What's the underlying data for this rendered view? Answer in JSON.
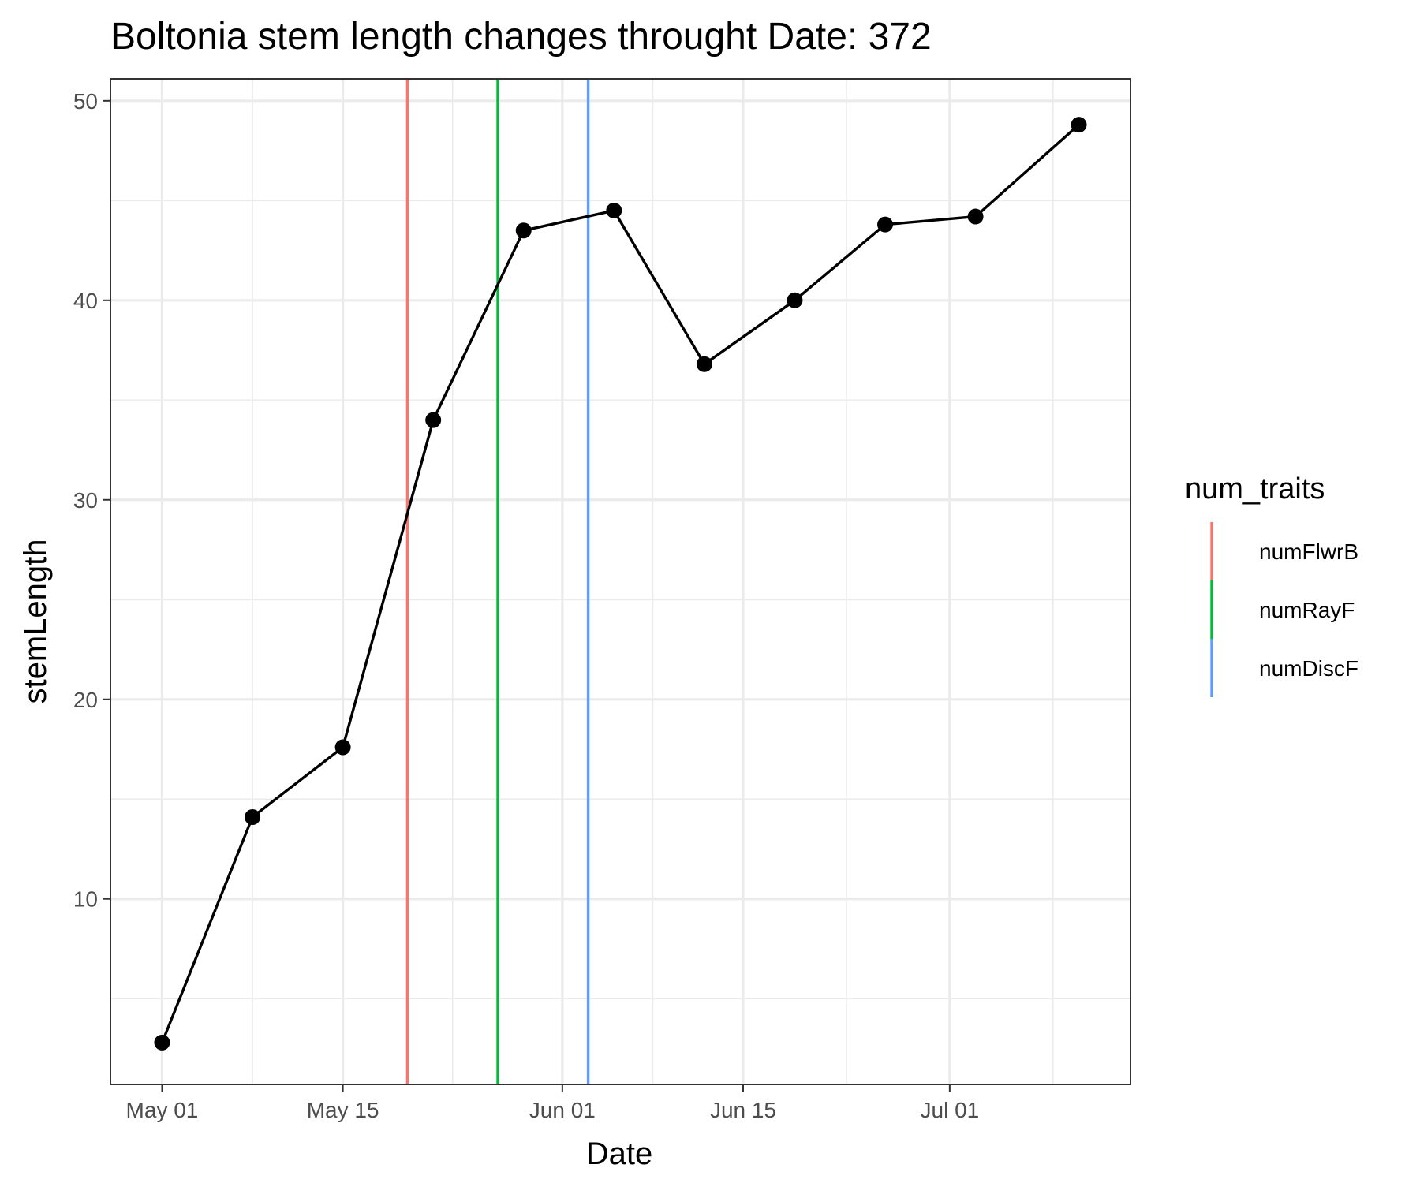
{
  "chart_data": {
    "type": "line",
    "title": "Boltonia stem length changes throught Date:  372",
    "xlabel": "Date",
    "ylabel": "stemLength",
    "x_ticks": [
      "May 01",
      "May 15",
      "Jun 01",
      "Jun 15",
      "Jul 01"
    ],
    "x_tick_dates": [
      "2023-05-01",
      "2023-05-15",
      "2023-06-01",
      "2023-06-15",
      "2023-07-01"
    ],
    "y_ticks": [
      10,
      20,
      30,
      40,
      50
    ],
    "xlim": [
      "2023-04-27",
      "2023-07-15"
    ],
    "ylim": [
      0.7,
      51.1
    ],
    "grid": true,
    "series": [
      {
        "color": "#000000",
        "x": [
          "2023-05-01",
          "2023-05-08",
          "2023-05-15",
          "2023-05-22",
          "2023-05-29",
          "2023-06-05",
          "2023-06-12",
          "2023-06-19",
          "2023-06-26",
          "2023-07-03",
          "2023-07-11"
        ],
        "y": [
          2.8,
          14.1,
          17.6,
          34.0,
          43.5,
          44.5,
          36.8,
          40.0,
          43.8,
          44.2,
          48.8
        ]
      }
    ],
    "vlines": [
      {
        "name": "numFlwrB",
        "date": "2023-05-20",
        "color": "#f8766d"
      },
      {
        "name": "numRayF",
        "date": "2023-05-27",
        "color": "#00ba38"
      },
      {
        "name": "numDiscF",
        "date": "2023-06-03",
        "color": "#619cff"
      }
    ],
    "legend": {
      "title": "num_traits",
      "placement": "right",
      "entries": [
        "numFlwrB",
        "numRayF",
        "numDiscF"
      ]
    }
  }
}
